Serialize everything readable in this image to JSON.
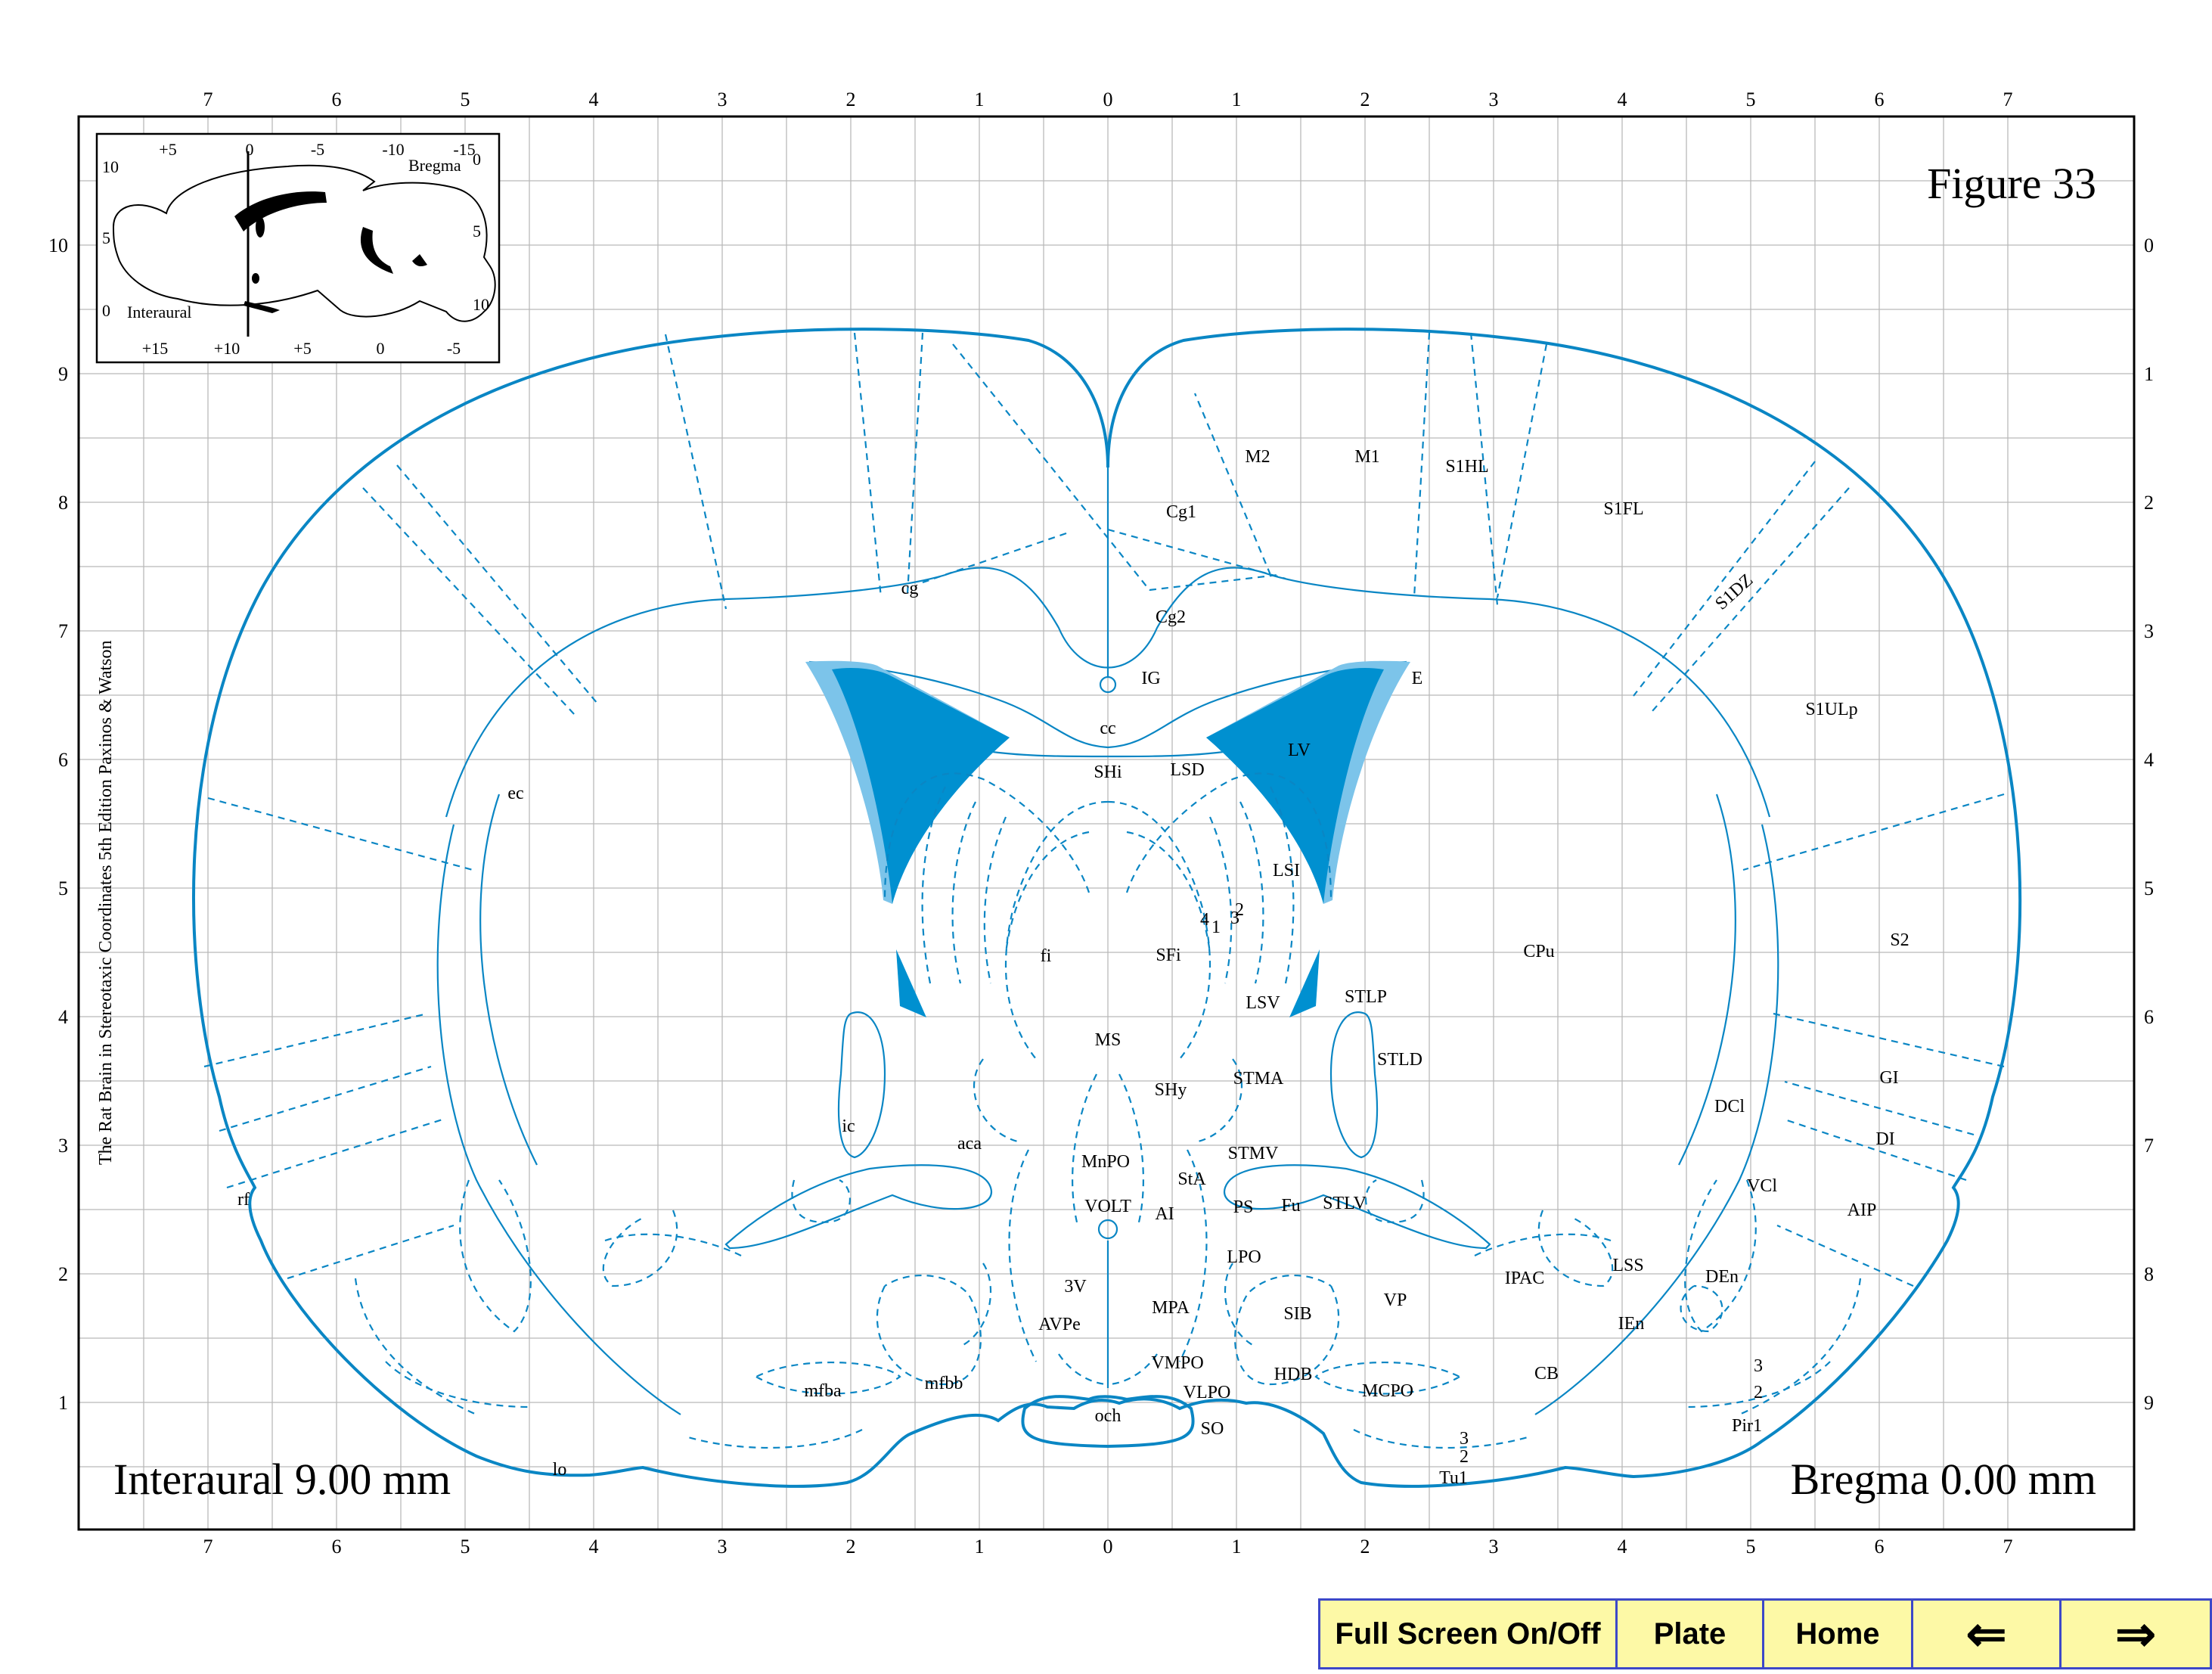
{
  "figure": {
    "title": "Figure 33",
    "interaural": "Interaural 9.00 mm",
    "bregma": "Bregma 0.00 mm",
    "side_caption": "The Rat Brain in Stereotaxic Coordinates  5th Edition  Paxinos & Watson"
  },
  "inset": {
    "top_ticks": [
      "+5",
      "0",
      "-5",
      "-10",
      "-15"
    ],
    "bottom_ticks": [
      "+15",
      "+10",
      "+5",
      "0",
      "-5"
    ],
    "left_ticks": [
      "10",
      "5",
      "0"
    ],
    "right_ticks": [
      "0",
      "5",
      "10"
    ],
    "bregma_label": "Bregma",
    "interaural_label": "Interaural"
  },
  "axes": {
    "x_ticks": [
      "7",
      "6",
      "5",
      "4",
      "3",
      "2",
      "1",
      "0",
      "1",
      "2",
      "3",
      "4",
      "5",
      "6",
      "7"
    ],
    "left_ticks": [
      "10",
      "9",
      "8",
      "7",
      "6",
      "5",
      "4",
      "3",
      "2",
      "1"
    ],
    "right_ticks": [
      "0",
      "1",
      "2",
      "3",
      "4",
      "5",
      "6",
      "7",
      "8",
      "9"
    ]
  },
  "regions": [
    "M2",
    "M1",
    "S1HL",
    "S1FL",
    "S1DZ",
    "S1ULp",
    "S2",
    "GI",
    "DI",
    "AIP",
    "DCl",
    "VCl",
    "DEn",
    "IEn",
    "LSS",
    "Pir1",
    "Tu1",
    "IPAC",
    "CPu",
    "Cg1",
    "Cg2",
    "cg",
    "IG",
    "E",
    "cc",
    "SHi",
    "LSD",
    "LV",
    "LSI",
    "SFi",
    "fi",
    "MS",
    "SHy",
    "STMA",
    "LSV",
    "STLP",
    "STLD",
    "STMV",
    "STLV",
    "ic",
    "aca",
    "MnPO",
    "VOLT",
    "StA",
    "AI",
    "PS",
    "Fu",
    "LPO",
    "VP",
    "SIB",
    "MPA",
    "3V",
    "AVPe",
    "VMPO",
    "VLPO",
    "HDB",
    "MCPO",
    "CB",
    "mfba",
    "mfbb",
    "och",
    "SO",
    "lo",
    "rf",
    "ec",
    "1",
    "2",
    "3",
    "4",
    "3",
    "2",
    "3",
    "2"
  ],
  "nav": {
    "fullscreen": "Full Screen On/Off",
    "plate": "Plate",
    "home": "Home",
    "prev": "⇐",
    "next": "⇒"
  },
  "colors": {
    "outline": "#0a86c4",
    "ventricle": "#0090d0",
    "ependyma": "#7cc4ea",
    "nav_bg": "#fdf9a6",
    "nav_border": "#3d48c8"
  }
}
